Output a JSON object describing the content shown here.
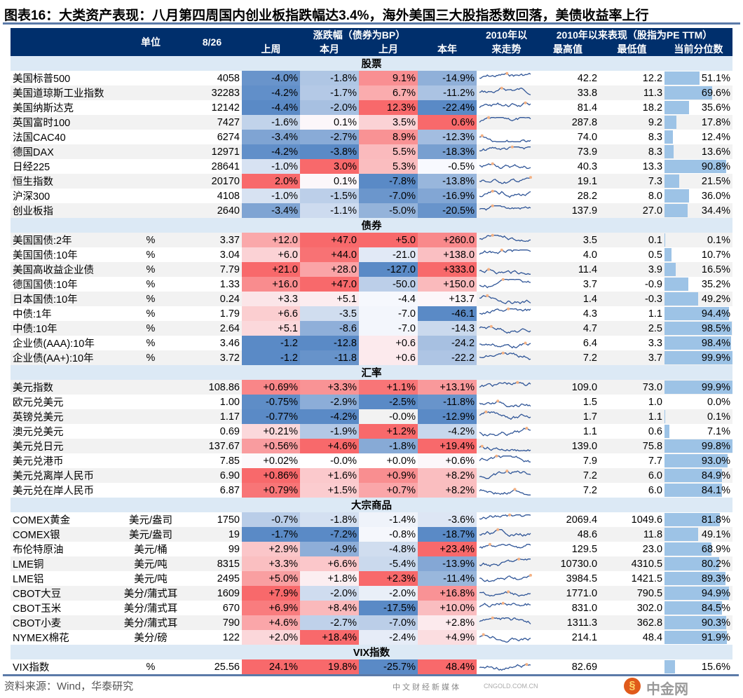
{
  "title": "图表16：大类资产表现：八月第四周国内创业板指跌幅达3.4%，海外美国三大股指悉数回落，美债收益率上行",
  "source": "资料来源：Wind，华泰研究",
  "watermark": {
    "logo_text": "中金网",
    "domain": "CNGOLD.COM.CN",
    "tagline": "中文财经新媒体"
  },
  "colors": {
    "header_bg": "#002f6c",
    "section_bg": "#dce9f5",
    "neg": "#5a8ac6",
    "pos": "#f8696b",
    "bar": "#9dc3e6",
    "spark": "#2f5597",
    "spark_dot": "#f4b183"
  },
  "header": {
    "unit": "单位",
    "date": "8/26",
    "change_group": "涨跌幅（债券为BP）",
    "week": "上周",
    "month": "本月",
    "last_month": "上月",
    "ytd": "本年",
    "trend_l1": "2010年以",
    "trend_l2": "来走势",
    "perf_group": "2010年以来表现（股指为PE TTM）",
    "high": "最高值",
    "low": "最低值",
    "pctile": "当前分位数"
  },
  "sections": [
    {
      "name": "股票",
      "rows": [
        [
          "美国标普500",
          "",
          "4058",
          "-4.0%",
          "-1.8%",
          "9.1%",
          "-14.9%",
          "42.2",
          "12.2",
          "51.1%"
        ],
        [
          "美国道琼斯工业指数",
          "",
          "32283",
          "-4.2%",
          "-1.7%",
          "6.7%",
          "-11.2%",
          "33.8",
          "11.3",
          "69.6%"
        ],
        [
          "美国纳斯达克",
          "",
          "12142",
          "-4.4%",
          "-2.0%",
          "12.3%",
          "-22.4%",
          "81.4",
          "18.2",
          "35.6%"
        ],
        [
          "英国富时100",
          "",
          "7427",
          "-1.6%",
          "0.1%",
          "3.5%",
          "0.6%",
          "287.8",
          "9.2",
          "17.8%"
        ],
        [
          "法国CAC40",
          "",
          "6274",
          "-3.4%",
          "-2.7%",
          "8.9%",
          "-12.3%",
          "74.0",
          "8.3",
          "12.4%"
        ],
        [
          "德国DAX",
          "",
          "12971",
          "-4.2%",
          "-3.8%",
          "5.5%",
          "-18.3%",
          "73.9",
          "8.3",
          "13.6%"
        ],
        [
          "日经225",
          "",
          "28641",
          "-1.0%",
          "3.0%",
          "5.3%",
          "-0.5%",
          "40.3",
          "13.3",
          "90.8%"
        ],
        [
          "恒生指数",
          "",
          "20170",
          "2.0%",
          "0.1%",
          "-7.8%",
          "-13.8%",
          "19.1",
          "7.3",
          "21.5%"
        ],
        [
          "沪深300",
          "",
          "4108",
          "-1.0%",
          "-1.5%",
          "-7.0%",
          "-16.9%",
          "28.2",
          "8.0",
          "36.0%"
        ],
        [
          "创业板指",
          "",
          "2640",
          "-3.4%",
          "-1.1%",
          "-5.0%",
          "-20.5%",
          "137.9",
          "27.0",
          "34.4%"
        ]
      ]
    },
    {
      "name": "债券",
      "rows": [
        [
          "美国国债:2年",
          "%",
          "3.37",
          "+12.0",
          "+47.0",
          "+5.0",
          "+260.0",
          "3.5",
          "0.1",
          "0.1%"
        ],
        [
          "美国国债:10年",
          "%",
          "3.04",
          "+6.0",
          "+44.0",
          "-21.0",
          "+138.0",
          "4.0",
          "0.5",
          "10.7%"
        ],
        [
          "美国高收益企业债",
          "%",
          "7.79",
          "+21.0",
          "+28.0",
          "-127.0",
          "+333.0",
          "11.4",
          "3.9",
          "16.5%"
        ],
        [
          "德国国债:10年",
          "%",
          "1.33",
          "+16.0",
          "+47.0",
          "-50.0",
          "+150.0",
          "3.7",
          "-0.9",
          "35.2%"
        ],
        [
          "日本国债:10年",
          "%",
          "0.24",
          "+3.3",
          "+5.1",
          "-4.4",
          "+13.7",
          "1.4",
          "-0.3",
          "49.2%"
        ],
        [
          "中债:1年",
          "%",
          "1.79",
          "+6.6",
          "-3.5",
          "-7.0",
          "-46.1",
          "4.3",
          "1.1",
          "94.4%"
        ],
        [
          "中债:10年",
          "%",
          "2.64",
          "+5.1",
          "-8.6",
          "-7.0",
          "-14.3",
          "4.7",
          "2.5",
          "98.5%"
        ],
        [
          "企业债(AAA):10年",
          "%",
          "3.46",
          "-1.2",
          "-12.8",
          "+0.6",
          "-24.2",
          "6.4",
          "3.3",
          "98.4%"
        ],
        [
          "企业债(AA+):10年",
          "%",
          "3.72",
          "-1.2",
          "-11.8",
          "+0.6",
          "-22.2",
          "7.2",
          "3.7",
          "99.9%"
        ]
      ]
    },
    {
      "name": "汇率",
      "rows": [
        [
          "美元指数",
          "",
          "108.86",
          "+0.69%",
          "+3.3%",
          "+1.1%",
          "+13.1%",
          "109.0",
          "73.0",
          "99.9%"
        ],
        [
          "欧元兑美元",
          "",
          "1.00",
          "-0.75%",
          "-2.9%",
          "-2.5%",
          "-11.8%",
          "1.5",
          "1.0",
          "0.0%"
        ],
        [
          "英镑兑美元",
          "",
          "1.17",
          "-0.77%",
          "-4.2%",
          "-0.0%",
          "-12.9%",
          "1.7",
          "1.1",
          "0.1%"
        ],
        [
          "澳元兑美元",
          "",
          "0.69",
          "+0.21%",
          "-1.9%",
          "+1.2%",
          "-4.2%",
          "1.1",
          "0.6",
          "7.1%"
        ],
        [
          "美元兑日元",
          "",
          "137.67",
          "+0.56%",
          "+4.6%",
          "-1.8%",
          "+19.4%",
          "139.0",
          "75.8",
          "99.8%"
        ],
        [
          "美元兑港币",
          "",
          "7.85",
          "+0.02%",
          "-0.0%",
          "+0.0%",
          "+0.6%",
          "7.9",
          "7.7",
          "93.0%"
        ],
        [
          "美元兑离岸人民币",
          "",
          "6.90",
          "+0.86%",
          "+1.6%",
          "+0.9%",
          "+8.2%",
          "7.2",
          "6.0",
          "84.9%"
        ],
        [
          "美元兑在岸人民币",
          "",
          "6.87",
          "+0.79%",
          "+1.5%",
          "+0.7%",
          "+8.2%",
          "7.2",
          "6.0",
          "84.1%"
        ]
      ]
    },
    {
      "name": "大宗商品",
      "rows": [
        [
          "COMEX黄金",
          "美元/盎司",
          "1750",
          "-0.7%",
          "-1.8%",
          "-1.4%",
          "-3.6%",
          "2069.4",
          "1049.6",
          "81.8%"
        ],
        [
          "COMEX银",
          "美元/盎司",
          "19",
          "-1.7%",
          "-7.2%",
          "-0.8%",
          "-18.7%",
          "48.6",
          "11.8",
          "49.1%"
        ],
        [
          "布伦特原油",
          "美元/桶",
          "99",
          "+2.9%",
          "-4.9%",
          "-4.8%",
          "+23.4%",
          "129.5",
          "23.0",
          "68.9%"
        ],
        [
          "LME铜",
          "美元/吨",
          "8315",
          "+3.3%",
          "+6.6%",
          "-5.4%",
          "-13.9%",
          "10730.0",
          "4310.5",
          "80.2%"
        ],
        [
          "LME铝",
          "美元/吨",
          "2495",
          "+5.0%",
          "+1.8%",
          "+2.3%",
          "-11.4%",
          "3984.5",
          "1421.5",
          "89.3%"
        ],
        [
          "CBOT大豆",
          "美分/蒲式耳",
          "1609",
          "+7.9%",
          "-2.0%",
          "-2.0%",
          "+16.8%",
          "1771.0",
          "790.5",
          "94.9%"
        ],
        [
          "CBOT玉米",
          "美分/蒲式耳",
          "670",
          "+6.9%",
          "+8.4%",
          "-17.5%",
          "+10.0%",
          "831.0",
          "302.0",
          "84.5%"
        ],
        [
          "CBOT小麦",
          "美分/蒲式耳",
          "790",
          "+4.6%",
          "-2.7%",
          "-7.0%",
          "+2.8%",
          "1311.3",
          "362.8",
          "90.3%"
        ],
        [
          "NYMEX棉花",
          "美分/磅",
          "122",
          "+2.0%",
          "+18.4%",
          "-2.4%",
          "+4.9%",
          "214.1",
          "48.4",
          "91.9%"
        ]
      ]
    },
    {
      "name": "VIX指数",
      "rows": [
        [
          "VIX指数",
          "%",
          "25.56",
          "24.1%",
          "19.8%",
          "-25.7%",
          "48.4%",
          "82.69",
          "",
          "15.6%"
        ]
      ]
    }
  ]
}
